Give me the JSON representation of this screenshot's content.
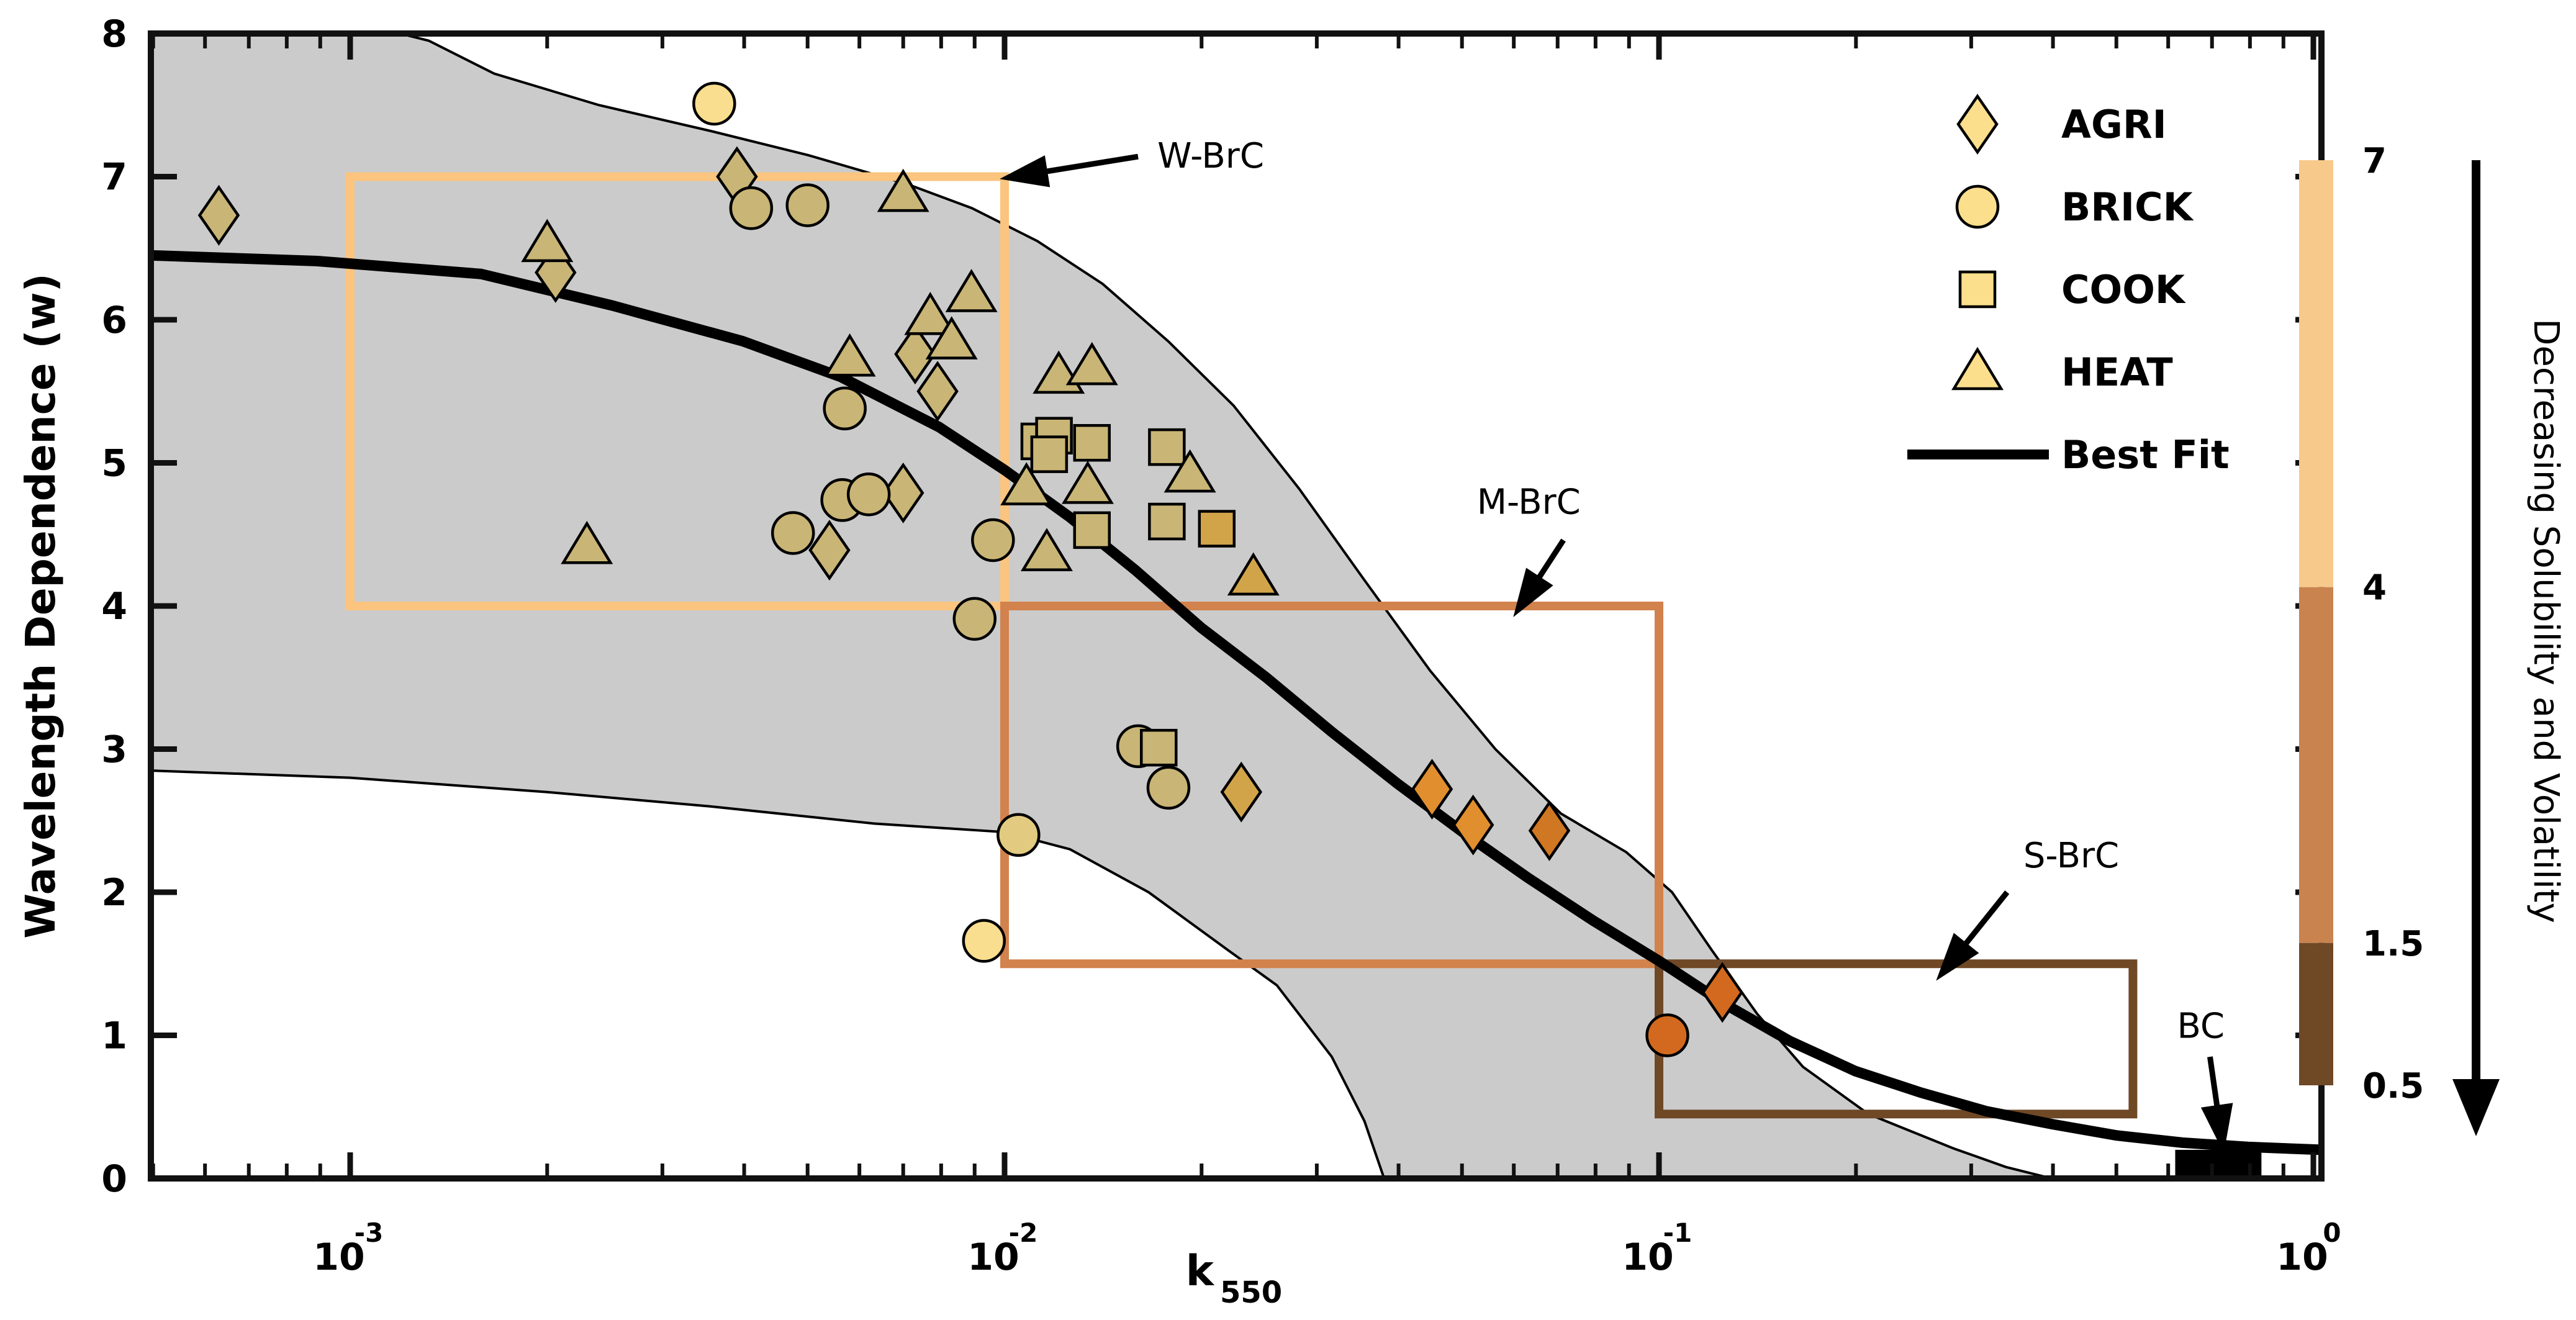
{
  "chart_data": {
    "type": "scatter",
    "title": "",
    "xlabel_base": "k",
    "xlabel_sub": "550",
    "ylabel": "Wavelength Dependence (w)",
    "x_scale": "log",
    "xlim_log": [
      -3.305,
      0.0123
    ],
    "ylim": [
      0,
      8
    ],
    "x_ticks": [
      {
        "base": "10",
        "exp": "-3",
        "log": -3
      },
      {
        "base": "10",
        "exp": "-2",
        "log": -2
      },
      {
        "base": "10",
        "exp": "-1",
        "log": -1
      },
      {
        "base": "10",
        "exp": "0",
        "log": 0
      }
    ],
    "y_ticks": [
      0,
      1,
      2,
      3,
      4,
      5,
      6,
      7,
      8
    ],
    "grid": false,
    "band_fill": "#CBCBCB",
    "best_fit_color": "#000000",
    "upper_envelope_logx_y": [
      [
        -3.305,
        8.03
      ],
      [
        -2.95,
        8.03
      ],
      [
        -2.88,
        7.95
      ],
      [
        -2.78,
        7.72
      ],
      [
        -2.62,
        7.5
      ],
      [
        -2.45,
        7.32
      ],
      [
        -2.3,
        7.15
      ],
      [
        -2.15,
        6.95
      ],
      [
        -2.05,
        6.78
      ],
      [
        -1.95,
        6.55
      ],
      [
        -1.85,
        6.25
      ],
      [
        -1.75,
        5.85
      ],
      [
        -1.65,
        5.4
      ],
      [
        -1.55,
        4.82
      ],
      [
        -1.45,
        4.18
      ],
      [
        -1.35,
        3.55
      ],
      [
        -1.25,
        3.0
      ],
      [
        -1.15,
        2.55
      ],
      [
        -1.05,
        2.28
      ],
      [
        -0.98,
        2.0
      ],
      [
        -0.92,
        1.6
      ],
      [
        -0.85,
        1.15
      ],
      [
        -0.78,
        0.78
      ],
      [
        -0.68,
        0.45
      ],
      [
        -0.55,
        0.21
      ],
      [
        -0.47,
        0.08
      ],
      [
        -0.4,
        0.0
      ]
    ],
    "lower_envelope_logx_y": [
      [
        -3.305,
        2.85
      ],
      [
        -3.0,
        2.8
      ],
      [
        -2.7,
        2.7
      ],
      [
        -2.45,
        2.6
      ],
      [
        -2.2,
        2.48
      ],
      [
        -2.0,
        2.42
      ],
      [
        -1.9,
        2.3
      ],
      [
        -1.78,
        2.0
      ],
      [
        -1.66,
        1.6
      ],
      [
        -1.584,
        1.35
      ],
      [
        -1.5,
        0.85
      ],
      [
        -1.45,
        0.4
      ],
      [
        -1.42,
        0.0
      ]
    ],
    "best_fit_logx_y": [
      [
        -3.305,
        6.45
      ],
      [
        -3.05,
        6.41
      ],
      [
        -2.8,
        6.32
      ],
      [
        -2.6,
        6.1
      ],
      [
        -2.4,
        5.85
      ],
      [
        -2.25,
        5.6
      ],
      [
        -2.1,
        5.25
      ],
      [
        -2.0,
        4.95
      ],
      [
        -1.9,
        4.62
      ],
      [
        -1.8,
        4.25
      ],
      [
        -1.7,
        3.85
      ],
      [
        -1.6,
        3.5
      ],
      [
        -1.5,
        3.12
      ],
      [
        -1.4,
        2.76
      ],
      [
        -1.3,
        2.42
      ],
      [
        -1.2,
        2.1
      ],
      [
        -1.1,
        1.8
      ],
      [
        -1.0,
        1.52
      ],
      [
        -0.9,
        1.22
      ],
      [
        -0.8,
        0.96
      ],
      [
        -0.7,
        0.75
      ],
      [
        -0.6,
        0.6
      ],
      [
        -0.5,
        0.47
      ],
      [
        -0.4,
        0.38
      ],
      [
        -0.3,
        0.3
      ],
      [
        -0.2,
        0.25
      ],
      [
        -0.1,
        0.22
      ],
      [
        0.012,
        0.2
      ]
    ],
    "marker_colors": {
      "khaki": "#C9B575",
      "khaki_light": "#E2CB80",
      "light": "#FADE8F",
      "gold": "#D2A44A",
      "orange1": "#E08E2E",
      "orange2": "#CF7722",
      "orange3": "#D2691E"
    },
    "series": [
      {
        "name": "AGRI",
        "marker": "diamond",
        "points": [
          [
            0.00063,
            6.73,
            "khaki"
          ],
          [
            0.00206,
            6.33,
            "khaki"
          ],
          [
            0.0039,
            7.0,
            "khaki"
          ],
          [
            0.0054,
            4.39,
            "khaki"
          ],
          [
            0.007,
            4.79,
            "khaki"
          ],
          [
            0.0073,
            5.76,
            "khaki"
          ],
          [
            0.0079,
            5.5,
            "khaki"
          ],
          [
            0.023,
            2.7,
            "gold"
          ],
          [
            0.045,
            2.72,
            "orange1"
          ],
          [
            0.052,
            2.47,
            "orange1"
          ],
          [
            0.068,
            2.43,
            "orange2"
          ],
          [
            0.125,
            1.3,
            "orange3"
          ]
        ]
      },
      {
        "name": "BRICK",
        "marker": "circle",
        "points": [
          [
            0.0036,
            7.51,
            "light"
          ],
          [
            0.0041,
            6.78,
            "khaki"
          ],
          [
            0.005,
            6.8,
            "khaki"
          ],
          [
            0.0057,
            5.38,
            "khaki"
          ],
          [
            0.00565,
            4.74,
            "khaki"
          ],
          [
            0.0062,
            4.78,
            "khaki"
          ],
          [
            0.00475,
            4.51,
            "khaki"
          ],
          [
            0.0096,
            4.46,
            "khaki"
          ],
          [
            0.009,
            3.91,
            "khaki"
          ],
          [
            0.0105,
            2.4,
            "khaki_light"
          ],
          [
            0.0093,
            1.66,
            "light"
          ],
          [
            0.016,
            3.02,
            "khaki"
          ],
          [
            0.0178,
            2.73,
            "khaki"
          ],
          [
            0.103,
            1.0,
            "orange3"
          ]
        ]
      },
      {
        "name": "COOK",
        "marker": "square",
        "points": [
          [
            0.0113,
            5.15,
            "khaki"
          ],
          [
            0.0119,
            5.19,
            "khaki"
          ],
          [
            0.0117,
            5.06,
            "khaki"
          ],
          [
            0.0136,
            5.14,
            "khaki"
          ],
          [
            0.0177,
            5.11,
            "khaki"
          ],
          [
            0.0136,
            4.53,
            "khaki"
          ],
          [
            0.0177,
            4.59,
            "khaki"
          ],
          [
            0.0211,
            4.54,
            "gold"
          ],
          [
            0.0172,
            3.01,
            "khaki"
          ]
        ]
      },
      {
        "name": "HEAT",
        "marker": "triangle",
        "points": [
          [
            0.002,
            6.53,
            "khaki"
          ],
          [
            0.0023,
            4.42,
            "khaki"
          ],
          [
            0.007,
            6.88,
            "khaki"
          ],
          [
            0.0077,
            6.02,
            "khaki"
          ],
          [
            0.0083,
            5.85,
            "khaki"
          ],
          [
            0.0089,
            6.18,
            "khaki"
          ],
          [
            0.0058,
            5.73,
            "khaki"
          ],
          [
            0.0121,
            5.61,
            "khaki"
          ],
          [
            0.0136,
            5.67,
            "khaki"
          ],
          [
            0.0108,
            4.83,
            "khaki"
          ],
          [
            0.0134,
            4.84,
            "khaki"
          ],
          [
            0.0192,
            4.92,
            "khaki"
          ],
          [
            0.0116,
            4.37,
            "khaki"
          ],
          [
            0.024,
            4.2,
            "gold"
          ]
        ]
      }
    ],
    "legend": {
      "items": [
        {
          "label": "AGRI",
          "marker": "diamond"
        },
        {
          "label": "BRICK",
          "marker": "circle"
        },
        {
          "label": "COOK",
          "marker": "square"
        },
        {
          "label": "HEAT",
          "marker": "triangle"
        },
        {
          "label": "Best Fit",
          "marker": "line"
        }
      ],
      "marker_fill": "#FBDF8C",
      "position": "top-right"
    },
    "class_boxes": [
      {
        "name": "W-BrC",
        "x1": 0.001,
        "x2": 0.01,
        "y1": 4.0,
        "y2": 7.0,
        "color": "#FBC47F"
      },
      {
        "name": "M-BrC",
        "x1": 0.01,
        "x2": 0.1,
        "y1": 1.5,
        "y2": 4.0,
        "color": "#D2824C"
      },
      {
        "name": "S-BrC",
        "x1": 0.1,
        "x2": 0.53,
        "y1": 0.45,
        "y2": 1.5,
        "color": "#6F4826"
      }
    ],
    "bc_bar": {
      "label": "BC",
      "x1": 0.615,
      "x2": 0.833,
      "y1": 0.02,
      "y2": 0.2,
      "color": "#000000"
    },
    "annotations": [
      {
        "label": "W-BrC",
        "text_logx": -1.685,
        "text_y": 7.15,
        "ax1_logx": -1.796,
        "ax1_y": 7.14,
        "ax2_logx": -1.972,
        "ax2_y": 7.01
      },
      {
        "label": "M-BrC",
        "text_logx": -1.199,
        "text_y": 4.73,
        "ax1_logx": -1.146,
        "ax1_y": 4.46,
        "ax2_logx": -1.203,
        "ax2_y": 4.06
      },
      {
        "label": "S-BrC",
        "text_logx": -0.37,
        "text_y": 2.26,
        "ax1_logx": -0.468,
        "ax1_y": 2.0,
        "ax2_logx": -0.554,
        "ax2_y": 1.51
      },
      {
        "label": "BC",
        "text_logx": -0.172,
        "text_y": 1.07,
        "ax1_logx": -0.158,
        "ax1_y": 0.85,
        "ax2_logx": -0.142,
        "ax2_y": 0.34
      }
    ],
    "colorbar": {
      "segments": [
        {
          "from": 4.0,
          "to": 7.0,
          "color": "#F7C98B"
        },
        {
          "from": 1.5,
          "to": 4.0,
          "color": "#C8834F"
        },
        {
          "from": 0.5,
          "to": 1.5,
          "color": "#6F4826"
        }
      ],
      "tick_labels": [
        "7",
        "4",
        "1.5",
        "0.5"
      ],
      "value_top": 7,
      "value_bottom": 0.5,
      "arrow_label": "Decreasing Solubility and Volatility"
    }
  }
}
